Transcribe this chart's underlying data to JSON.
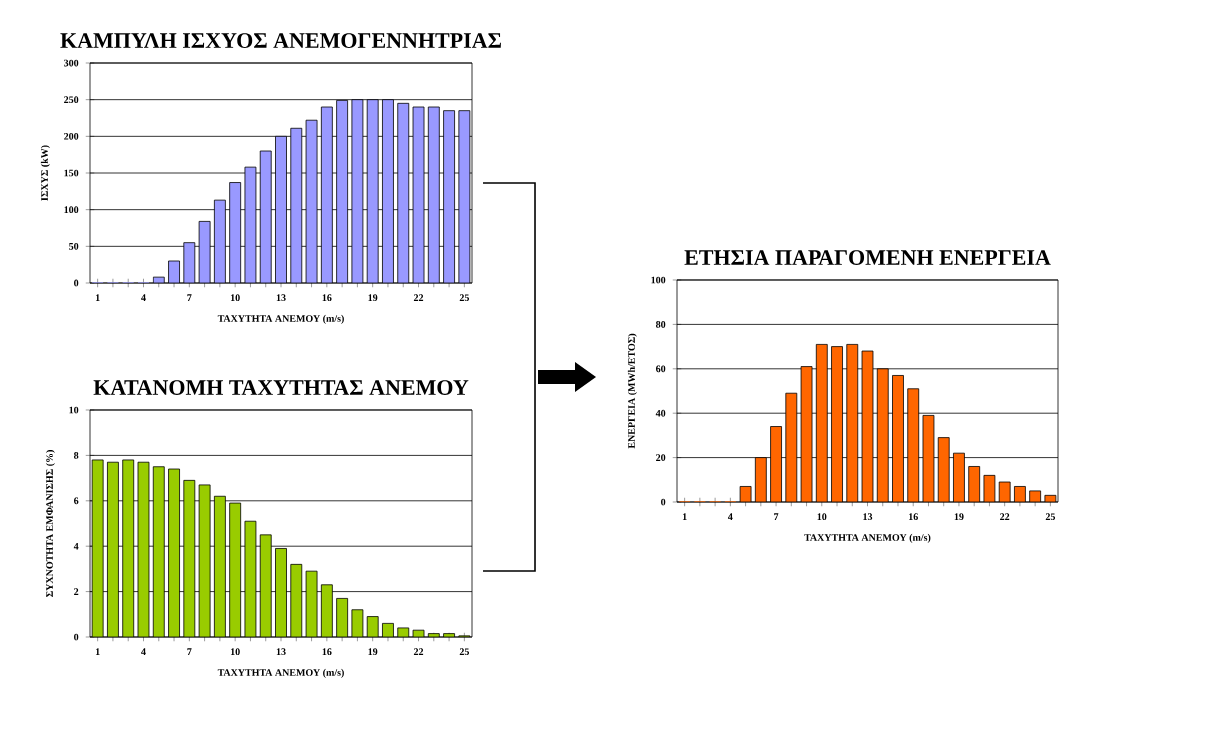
{
  "chart_data": [
    {
      "type": "bar",
      "title": "ΚΑΜΠΥΛΗ ΙΣΧΥΟΣ ΑΝΕΜΟΓΕΝΝΗΤΡΙΑΣ",
      "xlabel": "ΤΑΧΥΤΗΤΑ ΑΝΕΜΟΥ (m/s)",
      "ylabel": "ΙΣΧΥΣ (kW)",
      "categories": [
        "1",
        null,
        null,
        "4",
        null,
        null,
        "7",
        null,
        null,
        "10",
        null,
        null,
        "13",
        null,
        null,
        "16",
        null,
        null,
        "19",
        null,
        null,
        "22",
        null,
        null,
        "25"
      ],
      "values": [
        0,
        0,
        0,
        0,
        8,
        30,
        55,
        84,
        113,
        137,
        158,
        180,
        200,
        211,
        222,
        240,
        249,
        250,
        250,
        250,
        245,
        240,
        240,
        235,
        235
      ],
      "color": "#9999ff",
      "ylim": [
        0,
        300
      ],
      "yticks": [
        0,
        50,
        100,
        150,
        200,
        250,
        300
      ],
      "grid": "y"
    },
    {
      "type": "bar",
      "title": "ΚΑΤΑΝΟΜΗ ΤΑΧΥΤΗΤΑΣ ΑΝΕΜΟΥ",
      "xlabel": "ΤΑΧΥΤΗΤΑ ΑΝΕΜΟΥ (m/s)",
      "ylabel": "ΣΥΧΝΟΤΗΤΑ ΕΜΦΑΝΙΣΗΣ (%)",
      "categories": [
        "1",
        null,
        null,
        "4",
        null,
        null,
        "7",
        null,
        null,
        "10",
        null,
        null,
        "13",
        null,
        null,
        "16",
        null,
        null,
        "19",
        null,
        null,
        "22",
        null,
        null,
        "25"
      ],
      "values": [
        7.8,
        7.7,
        7.8,
        7.7,
        7.5,
        7.4,
        6.9,
        6.7,
        6.2,
        5.9,
        5.1,
        4.5,
        3.9,
        3.2,
        2.9,
        2.3,
        1.7,
        1.2,
        0.9,
        0.6,
        0.4,
        0.3,
        0.15,
        0.15,
        0.05
      ],
      "color": "#99cc00",
      "ylim": [
        0,
        10
      ],
      "yticks": [
        0,
        2,
        4,
        6,
        8,
        10
      ],
      "grid": "y"
    },
    {
      "type": "bar",
      "title": "ΕΤΗΣΙΑ ΠΑΡΑΓΟΜΕΝΗ ΕΝΕΡΓΕΙΑ",
      "xlabel": "ΤΑΧΥΤΗΤΑ ΑΝΕΜΟΥ (m/s)",
      "ylabel": "ΕΝΕΡΓΕΙΑ (MWh/ΕΤΟΣ)",
      "categories": [
        "1",
        null,
        null,
        "4",
        null,
        null,
        "7",
        null,
        null,
        "10",
        null,
        null,
        "13",
        null,
        null,
        "16",
        null,
        null,
        "19",
        null,
        null,
        "22",
        null,
        null,
        "25"
      ],
      "values": [
        0,
        0,
        0,
        0,
        7,
        20,
        34,
        49,
        61,
        71,
        70,
        71,
        68,
        60,
        57,
        51,
        39,
        29,
        22,
        16,
        12,
        9,
        7,
        5,
        3
      ],
      "color": "#ff6600",
      "ylim": [
        0,
        100
      ],
      "yticks": [
        0,
        20,
        40,
        60,
        80,
        100
      ],
      "grid": "y"
    }
  ]
}
